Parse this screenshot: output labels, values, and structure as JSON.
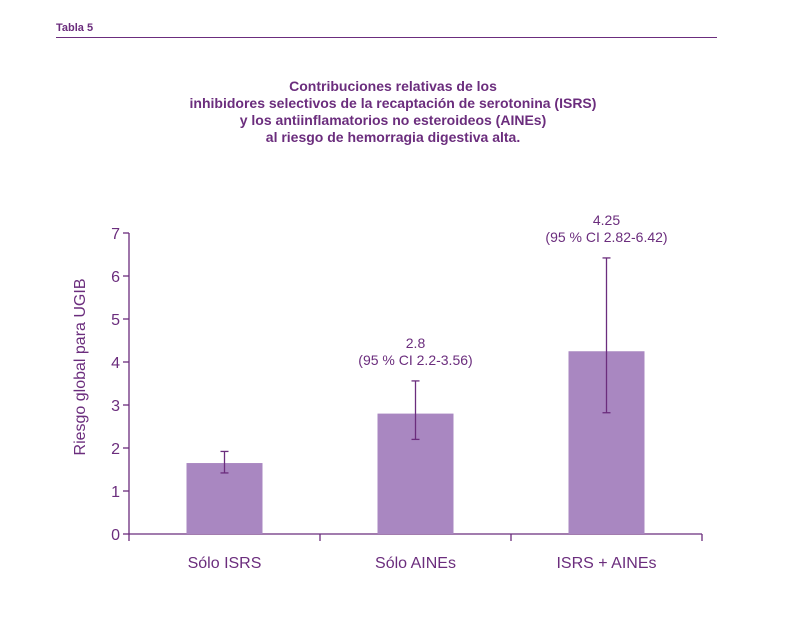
{
  "header": {
    "table_label": "Tabla 5"
  },
  "chart_data": {
    "type": "bar",
    "title_lines": [
      "Contribuciones relativas de los",
      "inhibidores selectivos de la recaptación de serotonina (ISRS)",
      "y los antiinflamatorios no esteroideos (AINEs)",
      "al riesgo de hemorragia digestiva alta."
    ],
    "ylabel": "Riesgo global para UGIB",
    "xlabel": "",
    "ylim": [
      0,
      7
    ],
    "yticks": [
      "0",
      "1",
      "2",
      "3",
      "4",
      "5",
      "6",
      "7"
    ],
    "categories": [
      "Sólo ISRS",
      "Sólo AINEs",
      "ISRS + AINEs"
    ],
    "values": [
      1.65,
      2.8,
      4.25
    ],
    "error_low": [
      1.42,
      2.2,
      2.82
    ],
    "error_high": [
      1.92,
      3.56,
      6.42
    ],
    "annotations": [
      {
        "value_text": "",
        "ci_text": ""
      },
      {
        "value_text": "2.8",
        "ci_text": "(95 % CI 2.2-3.56)"
      },
      {
        "value_text": "4.25",
        "ci_text": "(95 % CI 2.82-6.42)"
      }
    ],
    "colors": {
      "bar": "#a987c1",
      "axis": "#6b2d7d",
      "text": "#6b2d7d"
    }
  }
}
